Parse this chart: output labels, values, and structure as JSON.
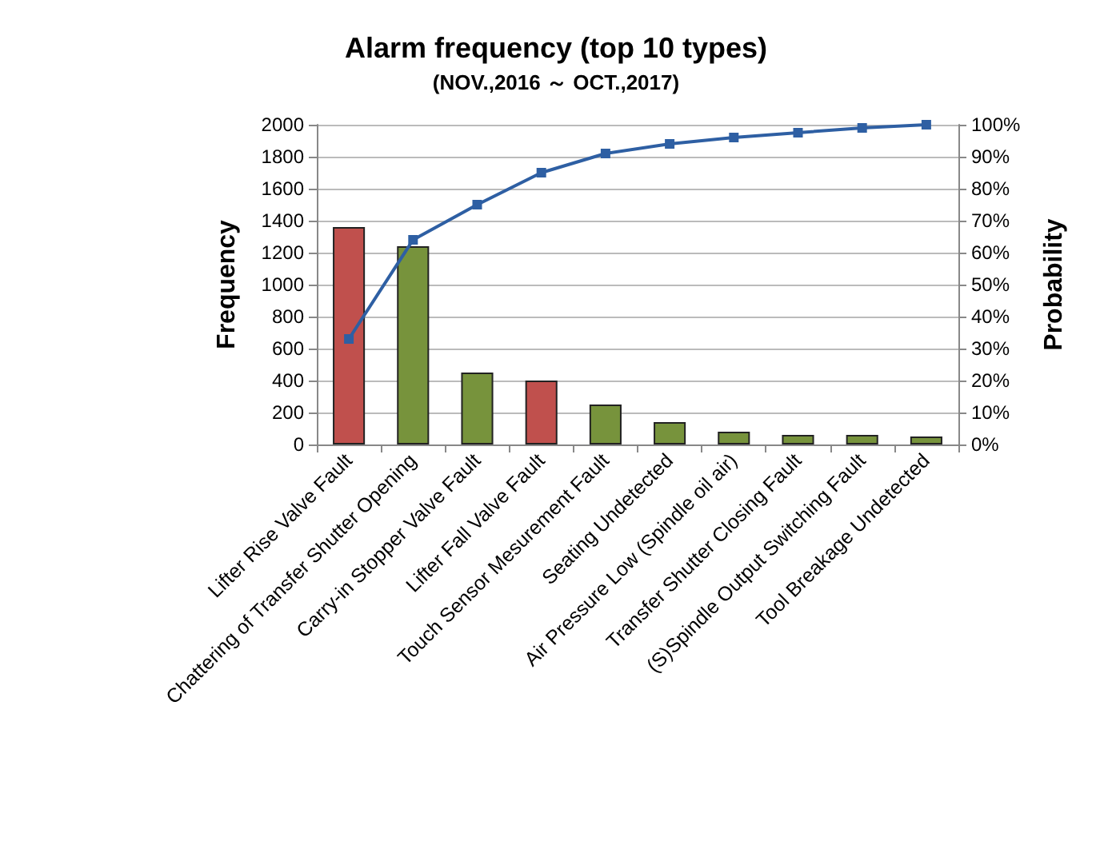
{
  "chart_data": {
    "type": "bar",
    "title": "Alarm frequency (top 10 types)",
    "subtitle": "(NOV.,2016 ～ OCT.,2017)",
    "ylabel": "Frequency",
    "y2label": "Probability",
    "categories": [
      "Lifter Rise Valve Fault",
      "Chattering of Transfer Shutter Opening",
      "Carry-in Stopper Valve Fault",
      "Lifter Fall Valve Fault",
      "Touch Sensor Mesurement Fault",
      "Seating Undetected",
      "Air Pressure Low (Spindle oil air)",
      "Transfer Shutter Closing Fault",
      "(S)Spindle Output Switching Fault",
      "Tool Breakage Undetected"
    ],
    "series": [
      {
        "colors": [
          "#c0504d",
          "#77933c",
          "#77933c",
          "#c0504d",
          "#77933c",
          "#77933c",
          "#77933c",
          "#77933c",
          "#77933c",
          "#77933c"
        ],
        "values": [
          1360,
          1240,
          450,
          400,
          250,
          140,
          80,
          60,
          60,
          50
        ]
      },
      {
        "type": "line",
        "axis": "y2",
        "color": "#2e5fa3",
        "marker": "square",
        "values": [
          33,
          64,
          75,
          85,
          91,
          94,
          96,
          97.5,
          99,
          100
        ]
      }
    ],
    "ylim": [
      0,
      2000
    ],
    "yticks": [
      0,
      200,
      400,
      600,
      800,
      1000,
      1200,
      1400,
      1600,
      1800,
      2000
    ],
    "y2lim": [
      0,
      100
    ],
    "y2ticks": [
      {
        "value": 0,
        "label": "0%"
      },
      {
        "value": 10,
        "label": "10%"
      },
      {
        "value": 20,
        "label": "20%"
      },
      {
        "value": 30,
        "label": "30%"
      },
      {
        "value": 40,
        "label": "40%"
      },
      {
        "value": 50,
        "label": "50%"
      },
      {
        "value": 60,
        "label": "60%"
      },
      {
        "value": 70,
        "label": "70%"
      },
      {
        "value": 80,
        "label": "80%"
      },
      {
        "value": 90,
        "label": "90%"
      },
      {
        "value": 100,
        "label": "100%"
      }
    ],
    "grid": "y"
  }
}
